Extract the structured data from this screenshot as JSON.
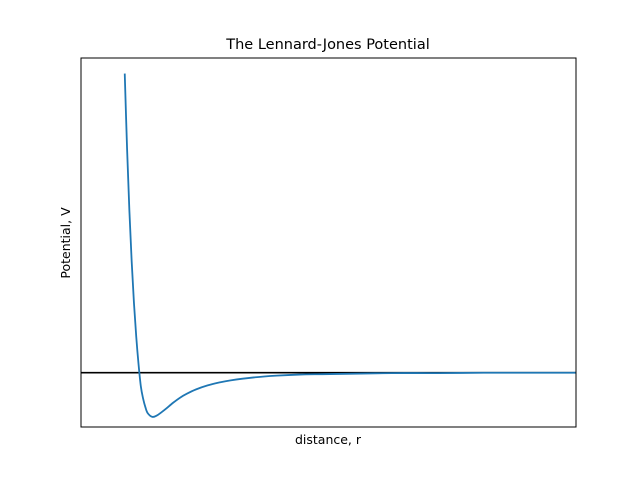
{
  "chart_data": {
    "type": "line",
    "title": "The Lennard-Jones Potential",
    "xlabel": "distance, r",
    "ylabel": "Potential, V",
    "x_ticks_visible": false,
    "y_ticks_visible": false,
    "grid": false,
    "legend": "none",
    "xlim": [
      0.85,
      3.0
    ],
    "ylim": [
      -1.5,
      8.7
    ],
    "reference_line": {
      "y": 0,
      "color": "#000000"
    },
    "series": [
      {
        "color": "#1f77b4",
        "x": [
          1.04,
          1.05,
          1.06,
          1.07,
          1.08,
          1.09,
          1.1,
          1.11,
          1.12,
          1.13,
          1.14,
          1.16,
          1.18,
          1.2,
          1.22,
          1.25,
          1.28,
          1.31,
          1.35,
          1.4,
          1.45,
          1.5,
          1.6,
          1.7,
          1.8,
          1.9,
          2.0,
          2.2,
          2.4,
          2.6,
          2.8,
          3.0
        ],
        "y": [
          8.27,
          6.21,
          4.5,
          3.09,
          1.93,
          0.99,
          0.23,
          -0.38,
          -0.72,
          -0.96,
          -1.12,
          -1.22,
          -1.18,
          -1.09,
          -0.99,
          -0.83,
          -0.69,
          -0.58,
          -0.46,
          -0.35,
          -0.27,
          -0.21,
          -0.13,
          -0.08,
          -0.05,
          -0.04,
          -0.03,
          -0.01,
          -0.01,
          0.0,
          0.0,
          0.0
        ]
      }
    ]
  }
}
